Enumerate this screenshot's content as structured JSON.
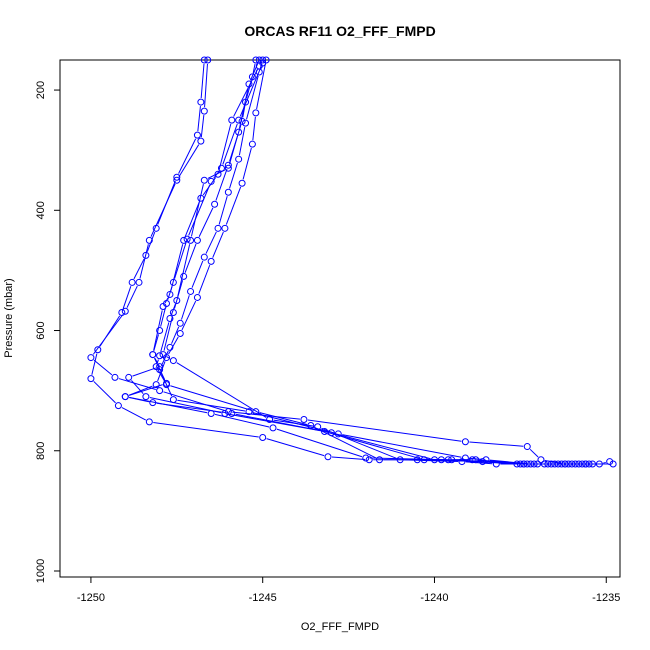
{
  "chart_data": {
    "type": "line",
    "title": "ORCAS RF11 O2_FFF_FMPD",
    "xlabel": "O2_FFF_FMPD",
    "ylabel": "Pressure (mbar)",
    "xlim": [
      -1250.9,
      -1234.6
    ],
    "ylim": [
      1010,
      150
    ],
    "x_ticks": [
      -1250,
      -1245,
      -1240,
      -1235
    ],
    "y_ticks": [
      200,
      400,
      600,
      800,
      1000
    ],
    "grid": false,
    "legend": "none",
    "color": "#0000ff",
    "series": [
      {
        "values": [
          [
            -1246.7,
            150
          ],
          [
            -1246.8,
            220
          ],
          [
            -1246.9,
            275
          ],
          [
            -1247.5,
            345
          ],
          [
            -1248.1,
            430
          ],
          [
            -1248.4,
            475
          ],
          [
            -1248.8,
            520
          ],
          [
            -1249.1,
            570
          ],
          [
            -1249.8,
            632
          ],
          [
            -1250.0,
            680
          ],
          [
            -1249.2,
            725
          ],
          [
            -1248.3,
            752
          ],
          [
            -1245.0,
            778
          ],
          [
            -1243.1,
            810
          ],
          [
            -1241.9,
            815
          ],
          [
            -1240.5,
            815
          ],
          [
            -1239.6,
            815
          ],
          [
            -1238.9,
            815
          ],
          [
            -1237.4,
            822
          ],
          [
            -1237.1,
            822
          ],
          [
            -1236.0,
            822
          ],
          [
            -1235.4,
            822
          ],
          [
            -1234.8,
            822
          ]
        ]
      },
      {
        "values": [
          [
            -1245.0,
            150
          ],
          [
            -1245.1,
            170
          ],
          [
            -1245.5,
            255
          ],
          [
            -1245.7,
            315
          ],
          [
            -1246.0,
            370
          ],
          [
            -1246.3,
            430
          ],
          [
            -1246.7,
            478
          ],
          [
            -1247.1,
            535
          ],
          [
            -1247.4,
            588
          ],
          [
            -1247.7,
            628
          ],
          [
            -1248.0,
            665
          ],
          [
            -1247.6,
            715
          ],
          [
            -1245.4,
            735
          ],
          [
            -1242.8,
            772
          ],
          [
            -1239.1,
            812
          ],
          [
            -1238.5,
            815
          ],
          [
            -1237.2,
            822
          ],
          [
            -1236.7,
            822
          ],
          [
            -1236.3,
            822
          ],
          [
            -1235.9,
            822
          ]
        ]
      },
      {
        "values": [
          [
            -1246.6,
            150
          ],
          [
            -1246.7,
            235
          ],
          [
            -1246.8,
            285
          ],
          [
            -1247.5,
            350
          ],
          [
            -1248.3,
            450
          ],
          [
            -1248.6,
            520
          ],
          [
            -1249.0,
            568
          ],
          [
            -1250.0,
            645
          ],
          [
            -1249.3,
            678
          ],
          [
            -1248.0,
            700
          ],
          [
            -1246.0,
            735
          ],
          [
            -1243.8,
            748
          ],
          [
            -1239.1,
            785
          ],
          [
            -1237.3,
            793
          ],
          [
            -1236.9,
            815
          ],
          [
            -1236.2,
            822
          ],
          [
            -1235.7,
            822
          ]
        ]
      },
      {
        "values": [
          [
            -1245.2,
            150
          ],
          [
            -1245.3,
            178
          ],
          [
            -1245.5,
            220
          ],
          [
            -1245.6,
            252
          ],
          [
            -1246.0,
            325
          ],
          [
            -1246.4,
            390
          ],
          [
            -1246.9,
            450
          ],
          [
            -1247.3,
            510
          ],
          [
            -1247.6,
            570
          ],
          [
            -1247.9,
            640
          ],
          [
            -1247.6,
            650
          ],
          [
            -1244.8,
            748
          ],
          [
            -1243.4,
            760
          ],
          [
            -1241.0,
            815
          ],
          [
            -1239.2,
            818
          ],
          [
            -1238.2,
            822
          ],
          [
            -1237.0,
            822
          ],
          [
            -1236.5,
            822
          ],
          [
            -1235.6,
            822
          ]
        ]
      },
      {
        "values": [
          [
            -1244.9,
            150
          ],
          [
            -1245.2,
            238
          ],
          [
            -1245.3,
            290
          ],
          [
            -1245.6,
            355
          ],
          [
            -1246.1,
            430
          ],
          [
            -1246.5,
            485
          ],
          [
            -1246.9,
            545
          ],
          [
            -1247.4,
            605
          ],
          [
            -1247.8,
            645
          ],
          [
            -1248.1,
            690
          ],
          [
            -1249.0,
            710
          ],
          [
            -1246.5,
            738
          ],
          [
            -1244.7,
            762
          ],
          [
            -1242.0,
            812
          ],
          [
            -1239.5,
            815
          ],
          [
            -1237.4,
            822
          ],
          [
            -1236.8,
            822
          ],
          [
            -1236.1,
            822
          ],
          [
            -1235.5,
            822
          ]
        ]
      },
      {
        "values": [
          [
            -1245.1,
            150
          ],
          [
            -1245.4,
            190
          ],
          [
            -1245.7,
            270
          ],
          [
            -1246.0,
            330
          ],
          [
            -1246.7,
            350
          ],
          [
            -1247.1,
            450
          ],
          [
            -1247.5,
            550
          ],
          [
            -1247.7,
            580
          ],
          [
            -1248.0,
            642
          ],
          [
            -1248.1,
            660
          ],
          [
            -1247.8,
            690
          ],
          [
            -1245.2,
            735
          ],
          [
            -1243.6,
            758
          ],
          [
            -1241.6,
            815
          ],
          [
            -1239.8,
            815
          ],
          [
            -1237.6,
            822
          ],
          [
            -1236.6,
            822
          ],
          [
            -1235.2,
            822
          ],
          [
            -1234.9,
            818
          ]
        ]
      },
      {
        "values": [
          [
            -1245.0,
            155
          ],
          [
            -1245.7,
            250
          ],
          [
            -1246.2,
            330
          ],
          [
            -1246.5,
            352
          ],
          [
            -1247.2,
            448
          ],
          [
            -1247.6,
            520
          ],
          [
            -1247.8,
            555
          ],
          [
            -1248.0,
            600
          ],
          [
            -1248.2,
            640
          ],
          [
            -1247.8,
            688
          ],
          [
            -1249.0,
            710
          ],
          [
            -1248.2,
            720
          ],
          [
            -1245.9,
            738
          ],
          [
            -1243.0,
            770
          ],
          [
            -1240.0,
            815
          ],
          [
            -1238.8,
            815
          ],
          [
            -1237.3,
            822
          ],
          [
            -1236.4,
            822
          ],
          [
            -1235.8,
            822
          ]
        ]
      },
      {
        "values": [
          [
            -1245.1,
            160
          ],
          [
            -1245.9,
            250
          ],
          [
            -1246.3,
            340
          ],
          [
            -1246.8,
            380
          ],
          [
            -1247.3,
            450
          ],
          [
            -1247.7,
            540
          ],
          [
            -1247.9,
            560
          ],
          [
            -1248.2,
            640
          ],
          [
            -1248.0,
            660
          ],
          [
            -1248.9,
            678
          ],
          [
            -1248.4,
            710
          ],
          [
            -1246.1,
            738
          ],
          [
            -1243.2,
            768
          ],
          [
            -1240.3,
            815
          ],
          [
            -1238.6,
            818
          ],
          [
            -1237.5,
            822
          ],
          [
            -1236.2,
            822
          ],
          [
            -1235.6,
            822
          ]
        ]
      }
    ]
  }
}
